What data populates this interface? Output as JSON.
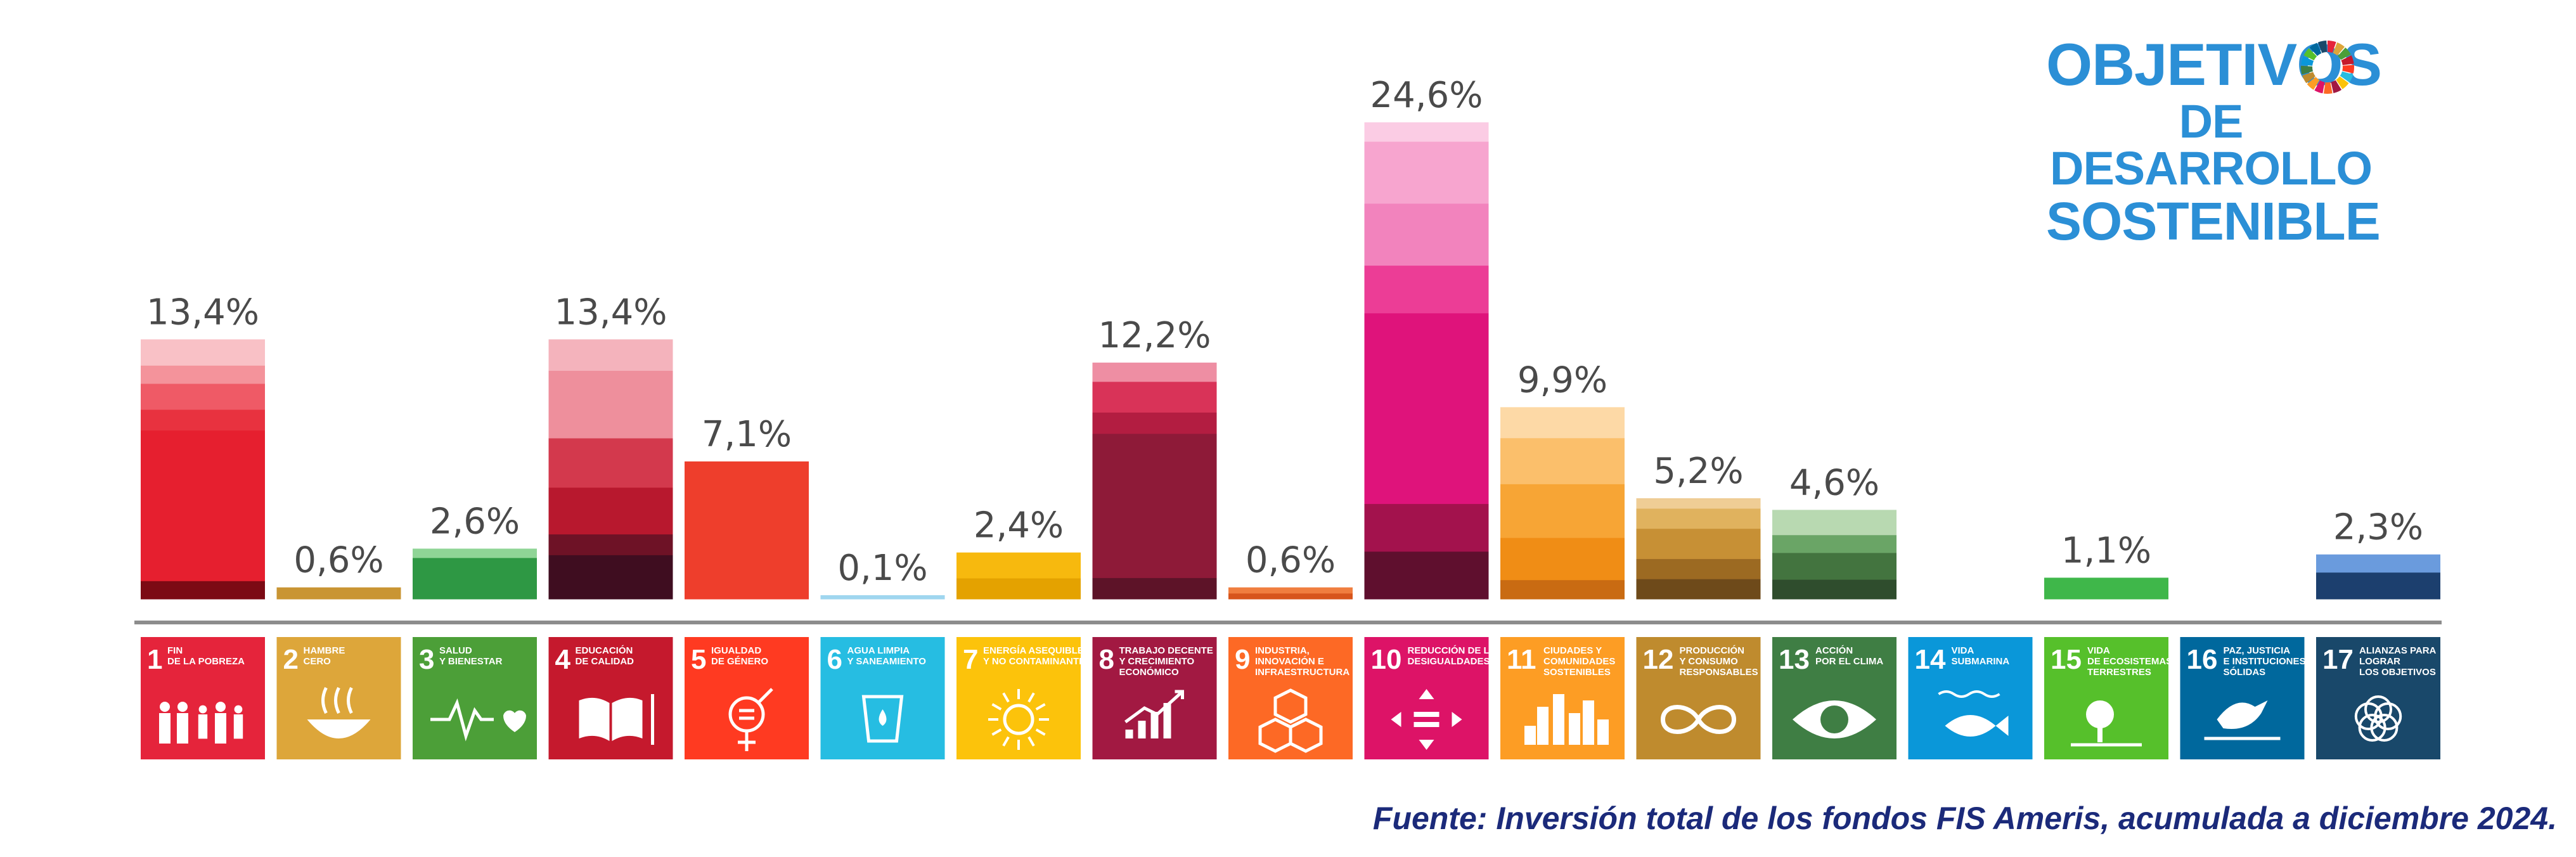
{
  "logo": {
    "line1": "OBJETIVOS",
    "line2": "DE DESARROLLO",
    "line3": "SOSTENIBLE"
  },
  "source_note": "Fuente: Inversión total de los fondos FIS Ameris, acumulada a diciembre 2024.",
  "chart_data": {
    "type": "bar",
    "title": "",
    "xlabel": "",
    "ylabel": "",
    "ylim": [
      0,
      24.6
    ],
    "grid": false,
    "categories": [
      {
        "num": "1",
        "lines": [
          "FIN",
          "DE LA POBREZA"
        ],
        "icon": "family-icon",
        "color": "#e5243b"
      },
      {
        "num": "2",
        "lines": [
          "HAMBRE",
          "CERO"
        ],
        "icon": "bowl-icon",
        "color": "#dda63a"
      },
      {
        "num": "3",
        "lines": [
          "SALUD",
          "Y BIENESTAR"
        ],
        "icon": "heartbeat-icon",
        "color": "#4c9f38"
      },
      {
        "num": "4",
        "lines": [
          "EDUCACIÓN",
          "DE CALIDAD"
        ],
        "icon": "book-icon",
        "color": "#c5192d"
      },
      {
        "num": "5",
        "lines": [
          "IGUALDAD",
          "DE GÉNERO"
        ],
        "icon": "gender-icon",
        "color": "#ff3a21"
      },
      {
        "num": "6",
        "lines": [
          "AGUA LIMPIA",
          "Y SANEAMIENTO"
        ],
        "icon": "water-glass-icon",
        "color": "#26bde2"
      },
      {
        "num": "7",
        "lines": [
          "ENERGÍA ASEQUIBLE",
          "Y NO CONTAMINANTE"
        ],
        "icon": "sun-power-icon",
        "color": "#fcc30b"
      },
      {
        "num": "8",
        "lines": [
          "TRABAJO DECENTE",
          "Y CRECIMIENTO",
          "ECONÓMICO"
        ],
        "icon": "growth-chart-icon",
        "color": "#a21942"
      },
      {
        "num": "9",
        "lines": [
          "INDUSTRIA,",
          "INNOVACIÓN E",
          "INFRAESTRUCTURA"
        ],
        "icon": "cubes-icon",
        "color": "#fd6925"
      },
      {
        "num": "10",
        "lines": [
          "REDUCCIÓN DE LAS",
          "DESIGUALDADES"
        ],
        "icon": "equality-arrows-icon",
        "color": "#dd1367"
      },
      {
        "num": "11",
        "lines": [
          "CIUDADES Y",
          "COMUNIDADES",
          "SOSTENIBLES"
        ],
        "icon": "city-icon",
        "color": "#fd9d24"
      },
      {
        "num": "12",
        "lines": [
          "PRODUCCIÓN",
          "Y CONSUMO",
          "RESPONSABLES"
        ],
        "icon": "infinity-icon",
        "color": "#bf8b2e"
      },
      {
        "num": "13",
        "lines": [
          "ACCIÓN",
          "POR EL CLIMA"
        ],
        "icon": "eye-globe-icon",
        "color": "#3f7e44"
      },
      {
        "num": "14",
        "lines": [
          "VIDA",
          "SUBMARINA"
        ],
        "icon": "fish-icon",
        "color": "#0a97d9"
      },
      {
        "num": "15",
        "lines": [
          "VIDA",
          "DE ECOSISTEMAS",
          "TERRESTRES"
        ],
        "icon": "tree-icon",
        "color": "#56c02b"
      },
      {
        "num": "16",
        "lines": [
          "PAZ, JUSTICIA",
          "E INSTITUCIONES",
          "SÓLIDAS"
        ],
        "icon": "dove-icon",
        "color": "#00689d"
      },
      {
        "num": "17",
        "lines": [
          "ALIANZAS PARA",
          "LOGRAR",
          "LOS OBJETIVOS"
        ],
        "icon": "rings-icon",
        "color": "#19486a"
      }
    ],
    "series": [
      {
        "values": [
          13.4,
          0.6,
          2.6,
          13.4,
          7.1,
          0.1,
          2.4,
          12.2,
          0.6,
          24.6,
          9.9,
          5.2,
          4.6,
          null,
          1.1,
          null,
          2.3
        ],
        "labels": [
          "13,4%",
          "0,6%",
          "2,6%",
          "13,4%",
          "7,1%",
          "0,1%",
          "2,4%",
          "12,2%",
          "0,6%",
          "24,6%",
          "9,9%",
          "5,2%",
          "4,6%",
          "",
          "1,1%",
          "",
          "2,3%"
        ]
      }
    ],
    "stack_colors": [
      [
        "#7c0a14",
        "#e61f2f",
        "#e8323f",
        "#ef5a66",
        "#f4939b",
        "#f9c1c6"
      ],
      [
        "#c99533"
      ],
      [
        "#2e9844",
        "#8fd596"
      ],
      [
        "#3f0d20",
        "#6e1226",
        "#b8182e",
        "#d3394d",
        "#ee8f9c",
        "#f4b3bc"
      ],
      [
        "#ee3e2c"
      ],
      [
        "#9fd6ef"
      ],
      [
        "#e4a200",
        "#f7b90e"
      ],
      [
        "#5d1328",
        "#8e1a38",
        "#b31d41",
        "#d93358",
        "#ee8ea3"
      ],
      [
        "#d7551c",
        "#f07e3f"
      ],
      [
        "#5f0f2e",
        "#a3124d",
        "#df137b",
        "#ec3d96",
        "#f283bd",
        "#f7a5cf",
        "#fbcce4"
      ],
      [
        "#c96b12",
        "#f08d15",
        "#f7a535",
        "#fbbf6b",
        "#fdd9a6"
      ],
      [
        "#6e4a1a",
        "#9c6a22",
        "#c79035",
        "#e0b25e",
        "#efcd95"
      ],
      [
        "#2f4d2d",
        "#43743f",
        "#6aa566",
        "#b8d9b1"
      ],
      [],
      [
        "#3fb74a"
      ],
      [],
      [
        "#1c3f6e",
        "#6a9bdd"
      ]
    ],
    "stack_fractions": [
      [
        0.07,
        0.58,
        0.08,
        0.1,
        0.07,
        0.1
      ],
      [
        1
      ],
      [
        0.82,
        0.18
      ],
      [
        0.17,
        0.08,
        0.18,
        0.19,
        0.26,
        0.12
      ],
      [
        1
      ],
      [
        1
      ],
      [
        0.45,
        0.55
      ],
      [
        0.09,
        0.61,
        0.09,
        0.13,
        0.08
      ],
      [
        0.5,
        0.5
      ],
      [
        0.1,
        0.1,
        0.4,
        0.1,
        0.13,
        0.13,
        0.04
      ],
      [
        0.1,
        0.22,
        0.28,
        0.24,
        0.16
      ],
      [
        0.2,
        0.2,
        0.3,
        0.2,
        0.1
      ],
      [
        0.22,
        0.3,
        0.2,
        0.28
      ],
      [],
      [
        1
      ],
      [],
      [
        0.6,
        0.4
      ]
    ]
  }
}
